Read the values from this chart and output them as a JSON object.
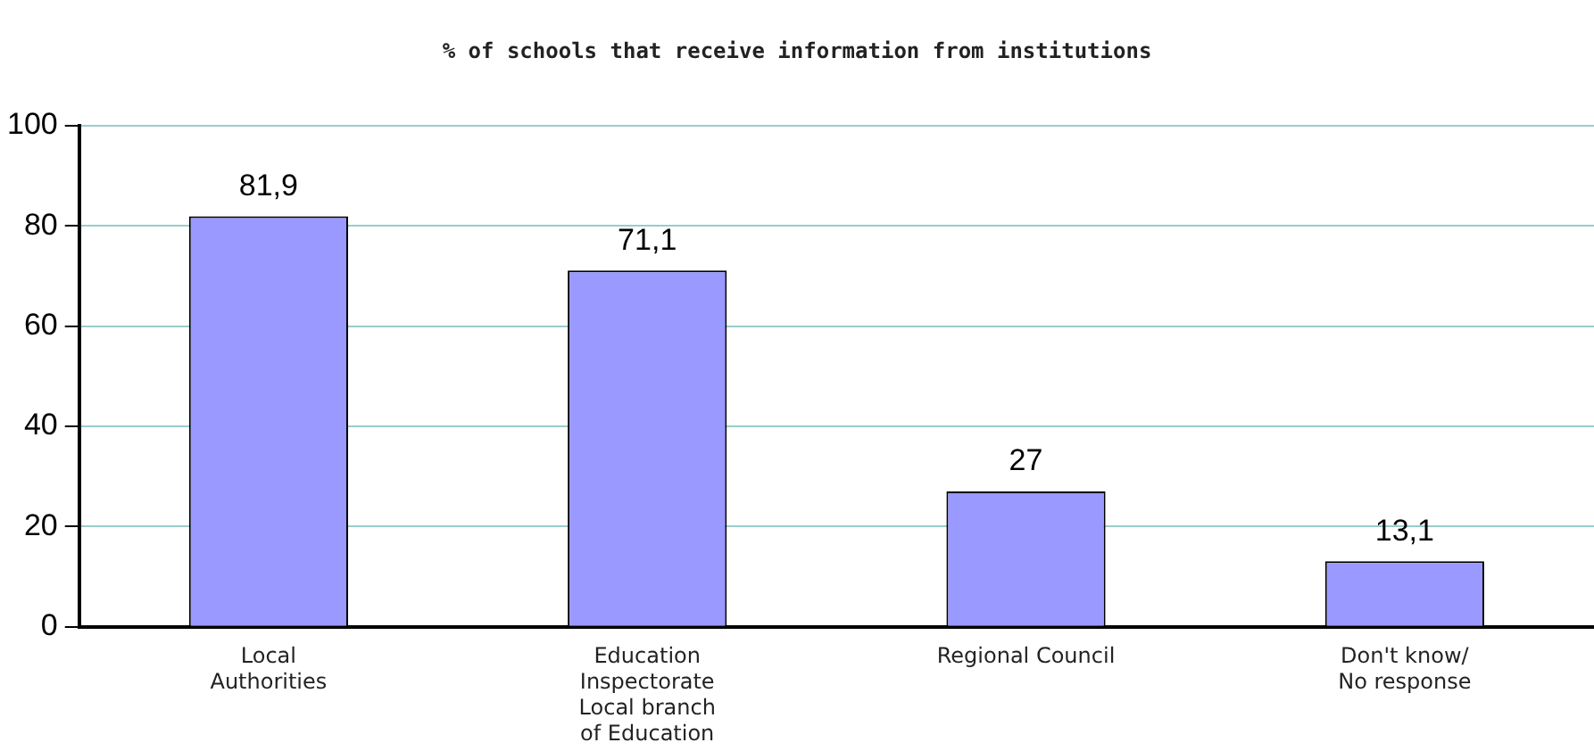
{
  "chart_data": {
    "type": "bar",
    "title": "% of schools that receive information from institutions",
    "categories": [
      "Local\nAuthorities",
      "Education\nInspectorate\nLocal branch\nof Education",
      "Regional Council",
      "Don't know/\nNo response"
    ],
    "values": [
      81.9,
      71.1,
      27,
      13.1
    ],
    "color": "#9999ff",
    "value_labels": [
      "81,9",
      "71,1",
      "27",
      "13,1"
    ],
    "ylim": [
      0,
      100
    ],
    "yticks": [
      0,
      20,
      40,
      60,
      80,
      100
    ],
    "grid": "y",
    "legend": false
  }
}
